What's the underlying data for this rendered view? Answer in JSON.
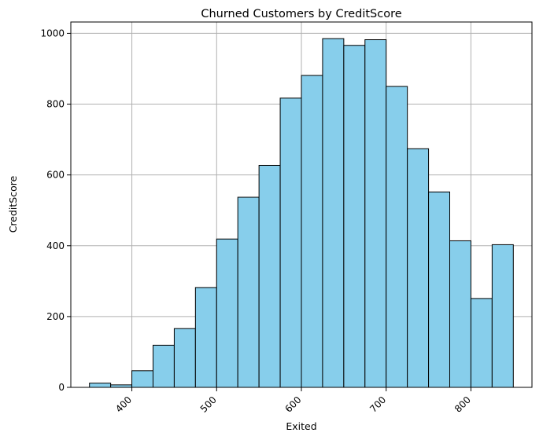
{
  "chart_data": {
    "type": "bar",
    "title": "Churned Customers by CreditScore",
    "xlabel": "Exited",
    "ylabel": "CreditScore",
    "bin_edges": [
      350,
      375,
      400,
      425,
      450,
      475,
      500,
      525,
      550,
      575,
      600,
      625,
      650,
      675,
      700,
      725,
      750,
      775,
      800,
      825,
      850
    ],
    "values": [
      12,
      7,
      47,
      119,
      166,
      282,
      419,
      537,
      627,
      817,
      881,
      985,
      966,
      982,
      850,
      674,
      552,
      414,
      251,
      403
    ],
    "xlim": [
      328,
      872
    ],
    "ylim": [
      0,
      1032
    ],
    "xticks": [
      400,
      500,
      600,
      700,
      800
    ],
    "xtick_labels": [
      "400",
      "500",
      "600",
      "700",
      "800"
    ],
    "yticks": [
      0,
      200,
      400,
      600,
      800,
      1000
    ],
    "ytick_labels": [
      "0",
      "200",
      "400",
      "600",
      "800",
      "1000"
    ],
    "xtick_rotation": 45,
    "grid": true,
    "colors": {
      "bar_fill": "#87CEEB",
      "bar_edge": "#000000",
      "grid": "#b0b0b0"
    }
  }
}
